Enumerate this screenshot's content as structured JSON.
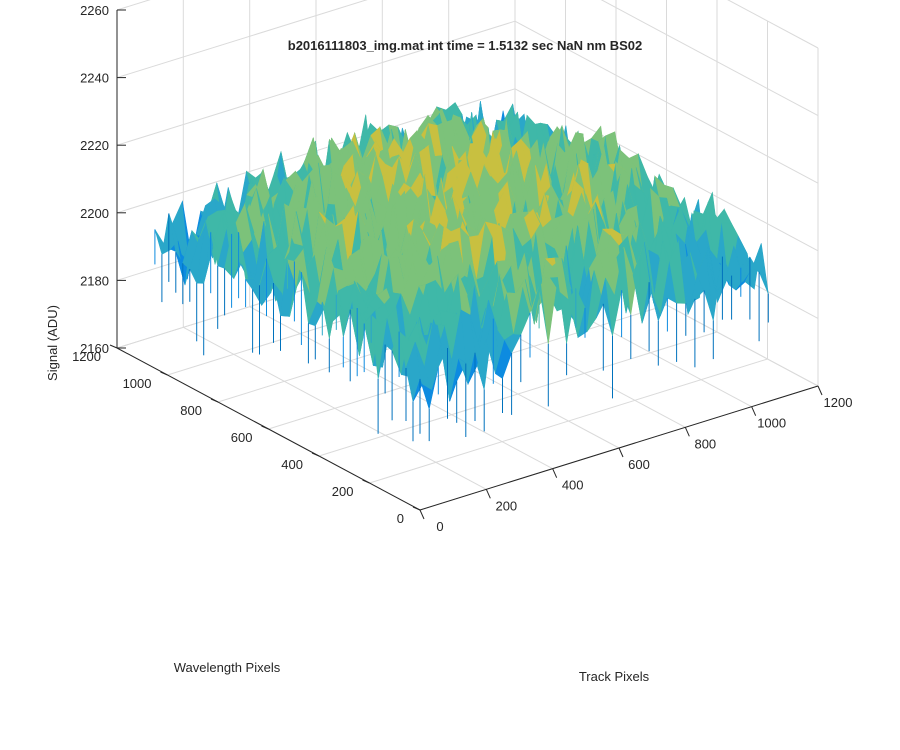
{
  "chart_data": {
    "type": "surface",
    "title": "b2016111803_img.mat int time = 1.5132 sec  NaN nm BS02",
    "xlabel": "Track Pixels",
    "ylabel": "Wavelength Pixels",
    "zlabel": "Signal (ADU)",
    "xlim": [
      0,
      1200
    ],
    "ylim": [
      0,
      1200
    ],
    "zlim": [
      2160,
      2260
    ],
    "x_ticks": [
      "0",
      "200",
      "400",
      "600",
      "800",
      "1000",
      "1200"
    ],
    "y_ticks": [
      "0",
      "200",
      "400",
      "600",
      "800",
      "1000",
      "1200"
    ],
    "z_ticks": [
      "2160",
      "2180",
      "2200",
      "2220",
      "2240",
      "2260"
    ],
    "x_tick_values": [
      0,
      200,
      400,
      600,
      800,
      1000,
      1200
    ],
    "y_tick_values": [
      0,
      200,
      400,
      600,
      800,
      1000,
      1200
    ],
    "z_tick_values": [
      2160,
      2180,
      2200,
      2220,
      2240,
      2260
    ],
    "surface": {
      "x_extent": [
        0,
        1050
      ],
      "y_extent": [
        0,
        1050
      ],
      "signal_at_corners": 2195,
      "signal_at_center": 2215,
      "noise_amplitude": 12,
      "colormap": [
        "#0072bd",
        "#0d8be0",
        "#2aa7c9",
        "#3fb8a8",
        "#7cc27a",
        "#c8c040",
        "#e8b92e"
      ]
    },
    "grid": true,
    "view": "3d"
  }
}
